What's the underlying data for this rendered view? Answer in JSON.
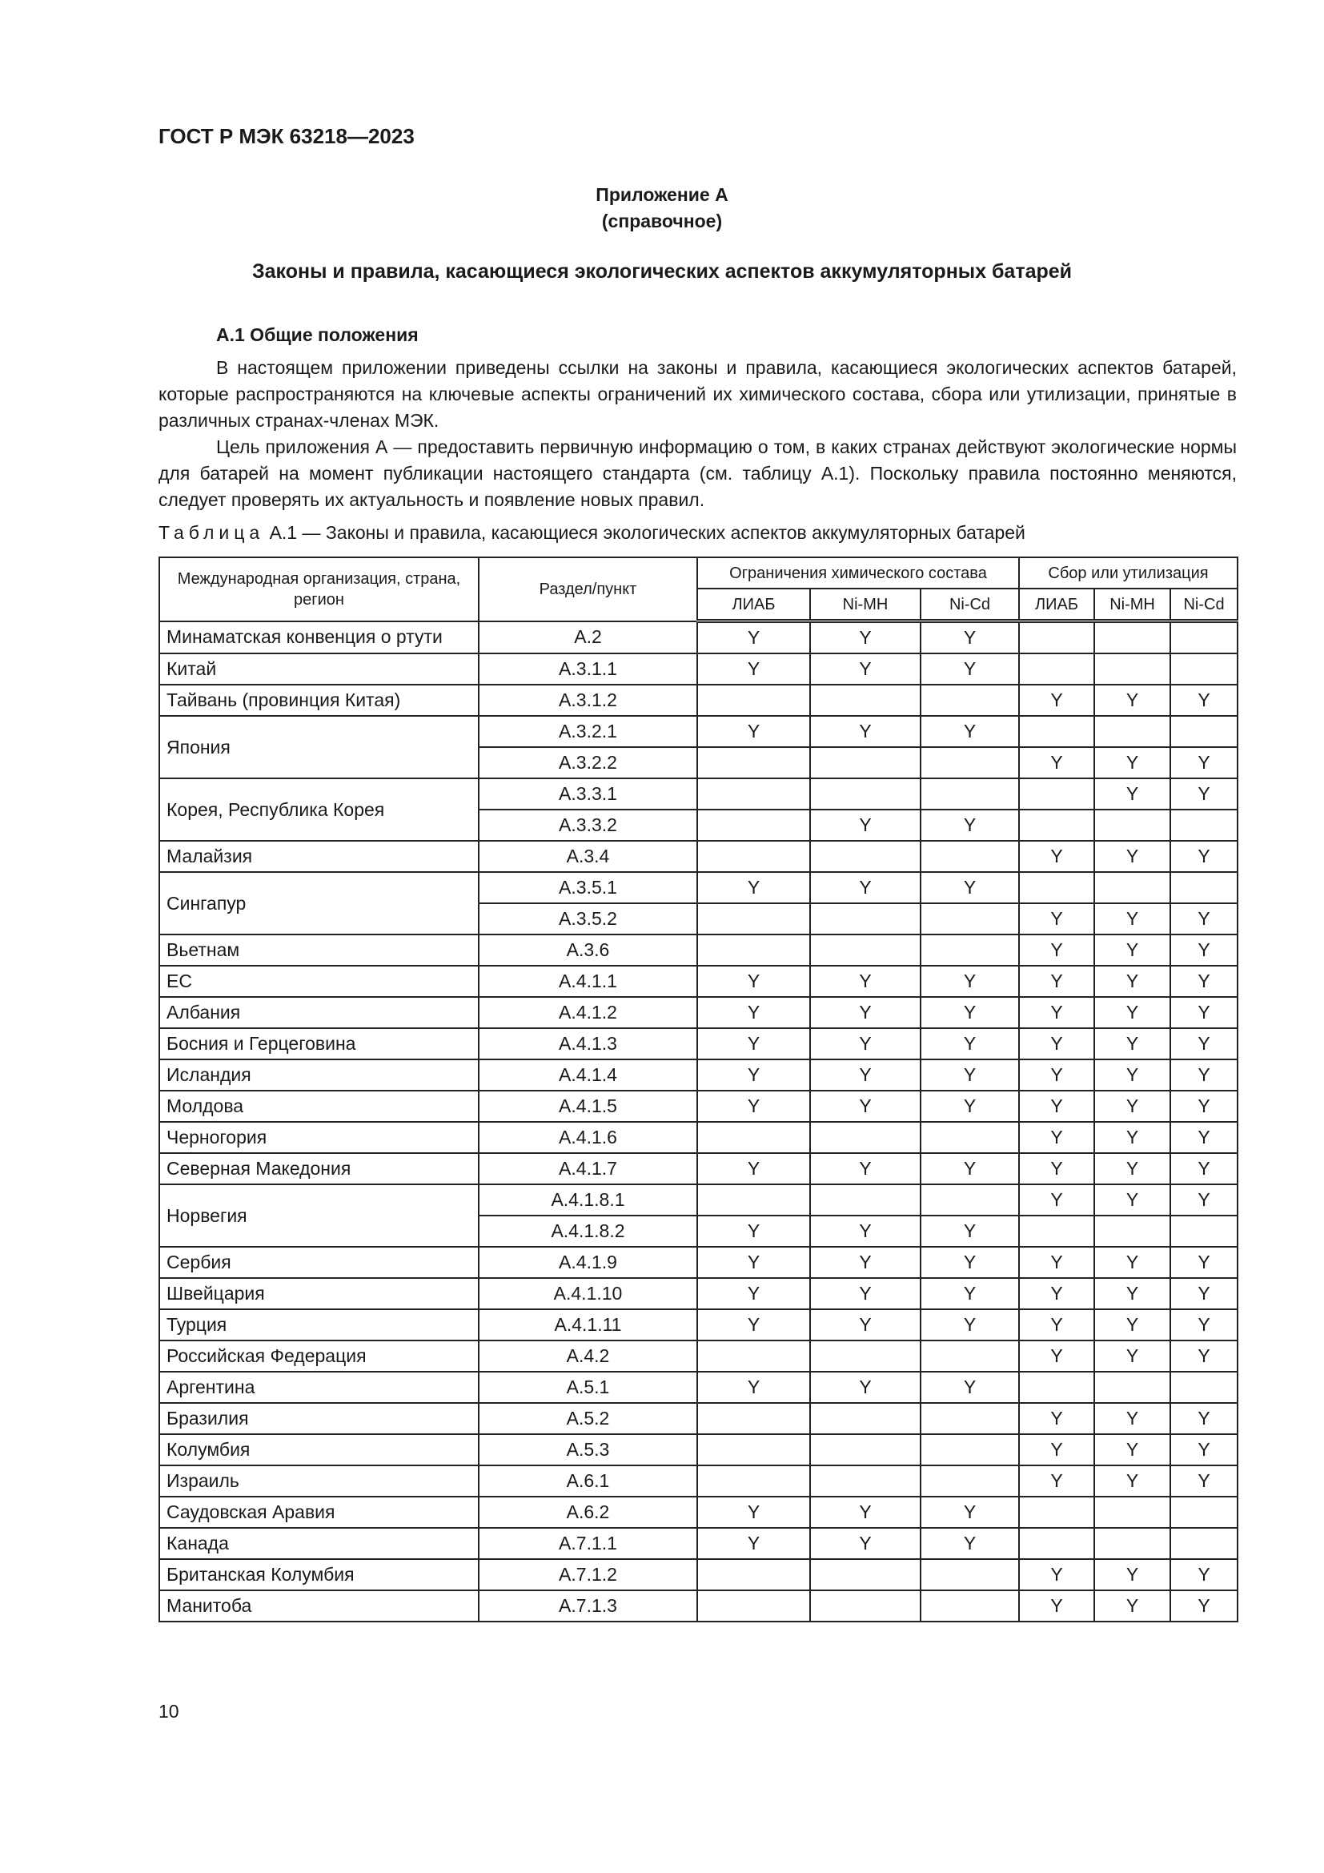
{
  "document": {
    "code": "ГОСТ Р МЭК 63218—2023",
    "annex_label": "Приложение А",
    "annex_type": "(справочное)",
    "annex_title": "Законы и правила, касающиеся экологических аспектов аккумуляторных батарей",
    "section_title": "А.1 Общие положения",
    "paragraphs": [
      "В настоящем приложении приведены ссылки на законы и правила, касающиеся экологических аспектов батарей, которые распространяются на ключевые аспекты ограничений их химического состава, сбора или утилизации, принятые в различных странах-членах МЭК.",
      "Цель приложения А — предоставить первичную информацию о том, в каких странах действуют экологические нормы для батарей на момент публикации настоящего стандарта (см. таблицу А.1). Поскольку правила постоянно меняются, следует проверять их актуальность и появление новых правил."
    ],
    "table_caption_prefix": "Таблица",
    "table_caption": "А.1 — Законы и правила, касающиеся экологических аспектов аккумуляторных батарей",
    "page_number": "10"
  },
  "table": {
    "headers": {
      "country": "Международная организация, страна, регион",
      "section": "Раздел/пункт",
      "group_chem": "Ограничения химического состава",
      "group_collect": "Сбор или утилизация",
      "sub": [
        "ЛИАБ",
        "Ni-MH",
        "Ni-Cd",
        "ЛИАБ",
        "Ni-MH",
        "Ni-Cd"
      ]
    },
    "groups": [
      {
        "country": "Минаматская конвенция о ртути",
        "rows": [
          {
            "section": "А.2",
            "flags": [
              "Y",
              "Y",
              "Y",
              "",
              "",
              ""
            ]
          }
        ]
      },
      {
        "country": "Китай",
        "rows": [
          {
            "section": "А.3.1.1",
            "flags": [
              "Y",
              "Y",
              "Y",
              "",
              "",
              ""
            ]
          }
        ]
      },
      {
        "country": "Тайвань (провинция Китая)",
        "rows": [
          {
            "section": "А.3.1.2",
            "flags": [
              "",
              "",
              "",
              "Y",
              "Y",
              "Y"
            ]
          }
        ]
      },
      {
        "country": "Япония",
        "rows": [
          {
            "section": "А.3.2.1",
            "flags": [
              "Y",
              "Y",
              "Y",
              "",
              "",
              ""
            ]
          },
          {
            "section": "А.3.2.2",
            "flags": [
              "",
              "",
              "",
              "Y",
              "Y",
              "Y"
            ]
          }
        ]
      },
      {
        "country": "Корея, Республика Корея",
        "rows": [
          {
            "section": "А.3.3.1",
            "flags": [
              "",
              "",
              "",
              "",
              "Y",
              "Y"
            ]
          },
          {
            "section": "А.3.3.2",
            "flags": [
              "",
              "Y",
              "Y",
              "",
              "",
              ""
            ]
          }
        ]
      },
      {
        "country": "Малайзия",
        "rows": [
          {
            "section": "А.3.4",
            "flags": [
              "",
              "",
              "",
              "Y",
              "Y",
              "Y"
            ]
          }
        ]
      },
      {
        "country": "Сингапур",
        "rows": [
          {
            "section": "А.3.5.1",
            "flags": [
              "Y",
              "Y",
              "Y",
              "",
              "",
              ""
            ]
          },
          {
            "section": "А.3.5.2",
            "flags": [
              "",
              "",
              "",
              "Y",
              "Y",
              "Y"
            ]
          }
        ]
      },
      {
        "country": "Вьетнам",
        "rows": [
          {
            "section": "А.3.6",
            "flags": [
              "",
              "",
              "",
              "Y",
              "Y",
              "Y"
            ]
          }
        ]
      },
      {
        "country": "ЕС",
        "rows": [
          {
            "section": "А.4.1.1",
            "flags": [
              "Y",
              "Y",
              "Y",
              "Y",
              "Y",
              "Y"
            ]
          }
        ]
      },
      {
        "country": "Албания",
        "rows": [
          {
            "section": "А.4.1.2",
            "flags": [
              "Y",
              "Y",
              "Y",
              "Y",
              "Y",
              "Y"
            ]
          }
        ]
      },
      {
        "country": "Босния и Герцеговина",
        "rows": [
          {
            "section": "А.4.1.3",
            "flags": [
              "Y",
              "Y",
              "Y",
              "Y",
              "Y",
              "Y"
            ]
          }
        ]
      },
      {
        "country": "Исландия",
        "rows": [
          {
            "section": "А.4.1.4",
            "flags": [
              "Y",
              "Y",
              "Y",
              "Y",
              "Y",
              "Y"
            ]
          }
        ]
      },
      {
        "country": "Молдова",
        "rows": [
          {
            "section": "А.4.1.5",
            "flags": [
              "Y",
              "Y",
              "Y",
              "Y",
              "Y",
              "Y"
            ]
          }
        ]
      },
      {
        "country": "Черногория",
        "rows": [
          {
            "section": "А.4.1.6",
            "flags": [
              "",
              "",
              "",
              "Y",
              "Y",
              "Y"
            ]
          }
        ]
      },
      {
        "country": "Северная Македония",
        "rows": [
          {
            "section": "А.4.1.7",
            "flags": [
              "Y",
              "Y",
              "Y",
              "Y",
              "Y",
              "Y"
            ]
          }
        ]
      },
      {
        "country": "Норвегия",
        "rows": [
          {
            "section": "А.4.1.8.1",
            "flags": [
              "",
              "",
              "",
              "Y",
              "Y",
              "Y"
            ]
          },
          {
            "section": "А.4.1.8.2",
            "flags": [
              "Y",
              "Y",
              "Y",
              "",
              "",
              ""
            ]
          }
        ]
      },
      {
        "country": "Сербия",
        "rows": [
          {
            "section": "А.4.1.9",
            "flags": [
              "Y",
              "Y",
              "Y",
              "Y",
              "Y",
              "Y"
            ]
          }
        ]
      },
      {
        "country": "Швейцария",
        "rows": [
          {
            "section": "А.4.1.10",
            "flags": [
              "Y",
              "Y",
              "Y",
              "Y",
              "Y",
              "Y"
            ]
          }
        ]
      },
      {
        "country": "Турция",
        "rows": [
          {
            "section": "А.4.1.11",
            "flags": [
              "Y",
              "Y",
              "Y",
              "Y",
              "Y",
              "Y"
            ]
          }
        ]
      },
      {
        "country": "Российская Федерация",
        "rows": [
          {
            "section": "А.4.2",
            "flags": [
              "",
              "",
              "",
              "Y",
              "Y",
              "Y"
            ]
          }
        ]
      },
      {
        "country": "Аргентина",
        "rows": [
          {
            "section": "А.5.1",
            "flags": [
              "Y",
              "Y",
              "Y",
              "",
              "",
              ""
            ]
          }
        ]
      },
      {
        "country": "Бразилия",
        "rows": [
          {
            "section": "А.5.2",
            "flags": [
              "",
              "",
              "",
              "Y",
              "Y",
              "Y"
            ]
          }
        ]
      },
      {
        "country": "Колумбия",
        "rows": [
          {
            "section": "А.5.3",
            "flags": [
              "",
              "",
              "",
              "Y",
              "Y",
              "Y"
            ]
          }
        ]
      },
      {
        "country": "Израиль",
        "rows": [
          {
            "section": "А.6.1",
            "flags": [
              "",
              "",
              "",
              "Y",
              "Y",
              "Y"
            ]
          }
        ]
      },
      {
        "country": "Саудовская Аравия",
        "rows": [
          {
            "section": "А.6.2",
            "flags": [
              "Y",
              "Y",
              "Y",
              "",
              "",
              ""
            ]
          }
        ]
      },
      {
        "country": "Канада",
        "rows": [
          {
            "section": "А.7.1.1",
            "flags": [
              "Y",
              "Y",
              "Y",
              "",
              "",
              ""
            ]
          }
        ]
      },
      {
        "country": "Британская Колумбия",
        "rows": [
          {
            "section": "А.7.1.2",
            "flags": [
              "",
              "",
              "",
              "Y",
              "Y",
              "Y"
            ]
          }
        ]
      },
      {
        "country": "Манитоба",
        "rows": [
          {
            "section": "А.7.1.3",
            "flags": [
              "",
              "",
              "",
              "Y",
              "Y",
              "Y"
            ]
          }
        ]
      }
    ]
  }
}
